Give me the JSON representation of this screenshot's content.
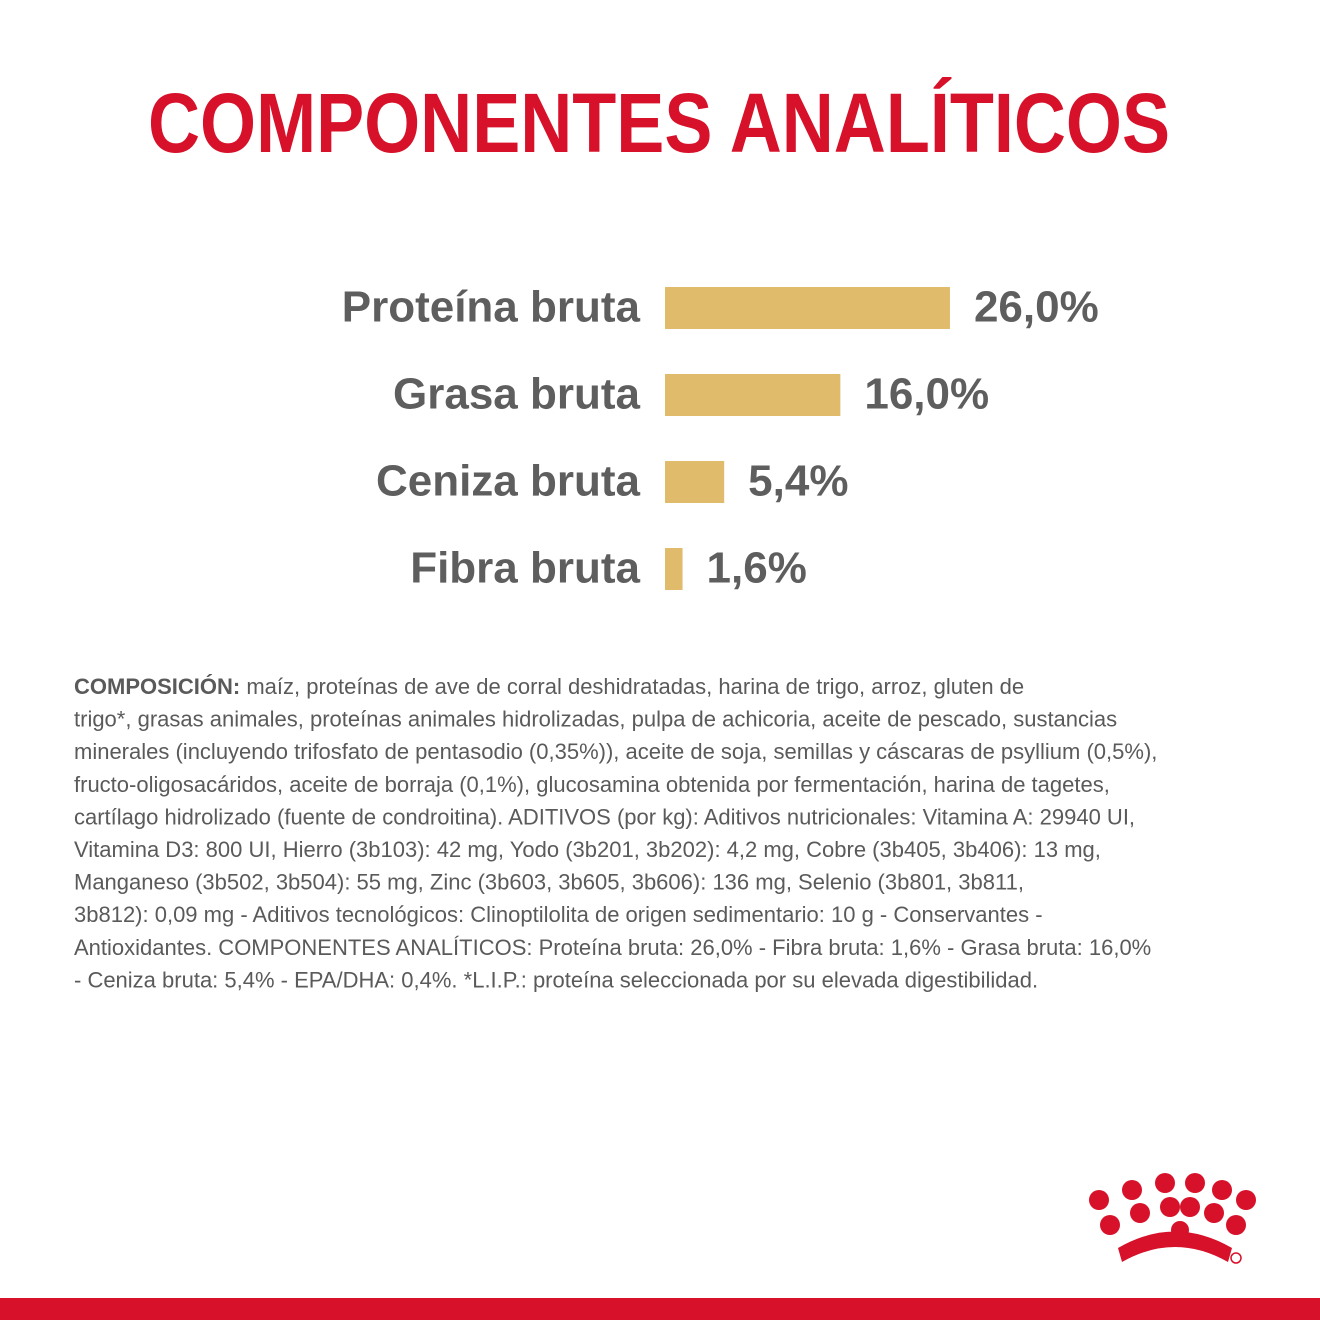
{
  "chart_data": {
    "type": "bar",
    "orientation": "horizontal",
    "title": "COMPONENTES ANALÍTICOS",
    "categories": [
      "Proteína bruta",
      "Grasa bruta",
      "Ceniza bruta",
      "Fibra bruta"
    ],
    "values": [
      26.0,
      16.0,
      5.4,
      1.6
    ],
    "value_labels": [
      "26,0%",
      "16,0%",
      "5,4%",
      "1,6%"
    ],
    "color": "#e1bb6c"
  },
  "composition": {
    "label": "COMPOSICIÓN:",
    "lines": [
      " maíz, proteínas de ave de corral deshidratadas, harina de trigo, arroz, gluten de",
      "trigo*, grasas animales, proteínas animales hidrolizadas, pulpa de achicoria, aceite de pescado, sustancias",
      "minerales (incluyendo trifosfato de pentasodio (0,35%)), aceite de soja, semillas y cáscaras de psyllium (0,5%),",
      "fructo-oligosacáridos, aceite de borraja (0,1%), glucosamina obtenida por fermentación, harina de tagetes,",
      "cartílago hidrolizado (fuente de condroitina). ADITIVOS (por kg): Aditivos nutricionales: Vitamina A: 29940 UI,",
      "Vitamina D3: 800 UI, Hierro (3b103): 42 mg, Yodo (3b201, 3b202): 4,2 mg, Cobre (3b405, 3b406): 13 mg,",
      "Manganeso (3b502, 3b504): 55 mg, Zinc (3b603, 3b605, 3b606): 136 mg, Selenio (3b801, 3b811,",
      "3b812): 0,09 mg - Aditivos tecnológicos: Clinoptilolita de origen sedimentario: 10 g - Conservantes -",
      "Antioxidantes. COMPONENTES ANALÍTICOS: Proteína bruta: 26,0% - Fibra bruta: 1,6% - Grasa bruta: 16,0%",
      "- Ceniza bruta: 5,4% - EPA/DHA: 0,4%. *L.I.P.: proteína seleccionada por su elevada digestibilidad."
    ]
  }
}
